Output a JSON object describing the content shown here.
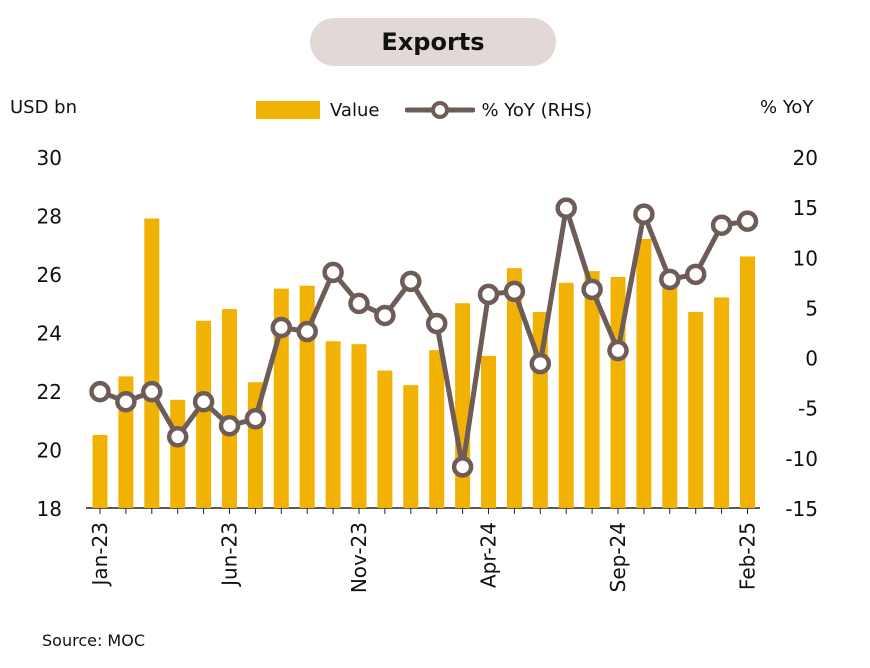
{
  "chart_data": {
    "type": "bar",
    "title": "Exports",
    "ylabel_left": "USD bn",
    "ylabel_right": "% YoY",
    "source": "Source: MOC",
    "left_axis": {
      "min": 18,
      "max": 30,
      "ticks": [
        30,
        28,
        26,
        24,
        22,
        20,
        18
      ]
    },
    "right_axis": {
      "min": -15,
      "max": 20,
      "ticks": [
        20,
        15,
        10,
        5,
        0,
        -5,
        -10,
        -15
      ]
    },
    "categories": [
      "Jan-23",
      "Feb-23",
      "Mar-23",
      "Apr-23",
      "May-23",
      "Jun-23",
      "Jul-23",
      "Aug-23",
      "Sep-23",
      "Oct-23",
      "Nov-23",
      "Dec-23",
      "Jan-24",
      "Feb-24",
      "Mar-24",
      "Apr-24",
      "May-24",
      "Jun-24",
      "Jul-24",
      "Aug-24",
      "Sep-24",
      "Oct-24",
      "Nov-24",
      "Dec-24",
      "Jan-25",
      "Feb-25"
    ],
    "x_tick_labels": [
      "Jan-23",
      "Jun-23",
      "Nov-23",
      "Apr-24",
      "Sep-24",
      "Feb-25"
    ],
    "series": [
      {
        "name": "Value",
        "type": "bar",
        "axis": "left",
        "color": "#f2b203",
        "values": [
          20.5,
          22.5,
          27.9,
          21.7,
          24.4,
          24.8,
          22.3,
          25.5,
          25.6,
          23.7,
          23.6,
          22.7,
          22.2,
          23.4,
          25.0,
          23.2,
          26.2,
          24.7,
          25.7,
          26.1,
          25.9,
          27.2,
          25.8,
          24.7,
          25.2,
          26.6
        ]
      },
      {
        "name": "% YoY (RHS)",
        "type": "line",
        "axis": "right",
        "color": "#6d5c58",
        "values": [
          -3.4,
          -4.4,
          -3.4,
          -7.9,
          -4.4,
          -6.8,
          -6.1,
          3.0,
          2.6,
          8.5,
          5.4,
          4.2,
          7.6,
          3.4,
          -10.9,
          6.3,
          6.6,
          -0.6,
          14.9,
          6.8,
          0.7,
          14.3,
          7.8,
          8.3,
          13.2,
          13.6
        ]
      }
    ],
    "legend": {
      "placement": "top-center",
      "entries": [
        "Value",
        "% YoY (RHS)"
      ]
    }
  }
}
